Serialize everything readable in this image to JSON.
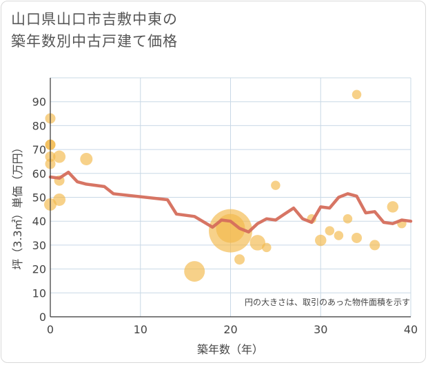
{
  "title_line1": "山口県山口市吉敷中東の",
  "title_line2": "築年数別中古戸建て価格",
  "chart_data": {
    "type": "scatter",
    "xlabel": "築年数（年）",
    "ylabel": "坪（3.3㎡）単価（万円）",
    "xlim": [
      0,
      40
    ],
    "ylim": [
      0,
      100
    ],
    "x_ticks": [
      0,
      10,
      20,
      30,
      40
    ],
    "y_ticks": [
      0,
      10,
      20,
      30,
      40,
      50,
      60,
      70,
      80,
      90
    ],
    "grid": true,
    "note": "円の大きさは、取引のあった物件面積を示す",
    "colors": {
      "bubble": "#f3b84a",
      "line": "#d56e5c",
      "grid": "#c8d8e6"
    },
    "scatter": [
      {
        "x": 0,
        "y": 83,
        "size": 1
      },
      {
        "x": 0,
        "y": 72,
        "size": 1
      },
      {
        "x": 0,
        "y": 72,
        "size": 1
      },
      {
        "x": 0,
        "y": 67,
        "size": 1
      },
      {
        "x": 0,
        "y": 64,
        "size": 1
      },
      {
        "x": 0,
        "y": 47,
        "size": 1.2
      },
      {
        "x": 1,
        "y": 67,
        "size": 1.2
      },
      {
        "x": 1,
        "y": 57,
        "size": 1
      },
      {
        "x": 1,
        "y": 49,
        "size": 1.2
      },
      {
        "x": 4,
        "y": 66,
        "size": 1.2
      },
      {
        "x": 16,
        "y": 19,
        "size": 2
      },
      {
        "x": 20,
        "y": 36,
        "size": 4.2
      },
      {
        "x": 20,
        "y": 37,
        "size": 2.8
      },
      {
        "x": 21,
        "y": 24,
        "size": 1
      },
      {
        "x": 23,
        "y": 31,
        "size": 1.5
      },
      {
        "x": 24,
        "y": 29,
        "size": 0.9
      },
      {
        "x": 25,
        "y": 55,
        "size": 0.9
      },
      {
        "x": 29,
        "y": 41,
        "size": 0.9
      },
      {
        "x": 30,
        "y": 32,
        "size": 1.1
      },
      {
        "x": 31,
        "y": 36,
        "size": 0.9
      },
      {
        "x": 32,
        "y": 34,
        "size": 0.9
      },
      {
        "x": 33,
        "y": 41,
        "size": 0.9
      },
      {
        "x": 34,
        "y": 93,
        "size": 0.9
      },
      {
        "x": 34,
        "y": 33,
        "size": 1
      },
      {
        "x": 36,
        "y": 30,
        "size": 1
      },
      {
        "x": 38,
        "y": 46,
        "size": 1.1
      },
      {
        "x": 39,
        "y": 39,
        "size": 0.9
      }
    ],
    "line": [
      {
        "x": 0,
        "y": 58.5
      },
      {
        "x": 1,
        "y": 58
      },
      {
        "x": 2,
        "y": 60.5
      },
      {
        "x": 3,
        "y": 56.5
      },
      {
        "x": 4,
        "y": 55.5
      },
      {
        "x": 5,
        "y": 55
      },
      {
        "x": 6,
        "y": 54.5
      },
      {
        "x": 7,
        "y": 51.5
      },
      {
        "x": 13,
        "y": 49
      },
      {
        "x": 14,
        "y": 43
      },
      {
        "x": 16,
        "y": 42
      },
      {
        "x": 18,
        "y": 37.5
      },
      {
        "x": 19,
        "y": 40.5
      },
      {
        "x": 20,
        "y": 40
      },
      {
        "x": 21,
        "y": 37
      },
      {
        "x": 22,
        "y": 35.5
      },
      {
        "x": 23,
        "y": 39
      },
      {
        "x": 24,
        "y": 41
      },
      {
        "x": 25,
        "y": 40.5
      },
      {
        "x": 26,
        "y": 43
      },
      {
        "x": 27,
        "y": 45.5
      },
      {
        "x": 28,
        "y": 41
      },
      {
        "x": 29,
        "y": 39.5
      },
      {
        "x": 30,
        "y": 46
      },
      {
        "x": 31,
        "y": 45.5
      },
      {
        "x": 32,
        "y": 50
      },
      {
        "x": 33,
        "y": 51.5
      },
      {
        "x": 34,
        "y": 50.5
      },
      {
        "x": 35,
        "y": 43.5
      },
      {
        "x": 36,
        "y": 44
      },
      {
        "x": 37,
        "y": 39.5
      },
      {
        "x": 38,
        "y": 39
      },
      {
        "x": 39,
        "y": 40.5
      },
      {
        "x": 40,
        "y": 40
      }
    ]
  }
}
